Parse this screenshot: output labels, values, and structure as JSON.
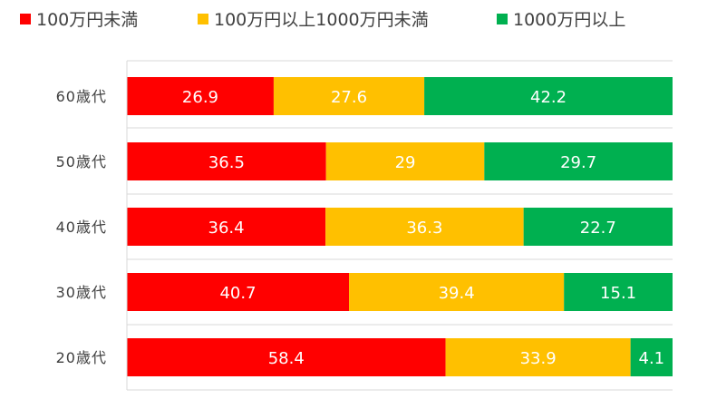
{
  "chart_data": {
    "type": "bar",
    "orientation": "horizontal",
    "stacked": true,
    "categories": [
      "60歳代",
      "50歳代",
      "40歳代",
      "30歳代",
      "20歳代"
    ],
    "series": [
      {
        "name": "100万円未満",
        "color": "#FF0000",
        "values": [
          26.9,
          36.5,
          36.4,
          40.7,
          58.4
        ]
      },
      {
        "name": "100万円以上1000万円未満",
        "color": "#FFC000",
        "values": [
          27.6,
          29,
          36.3,
          39.4,
          33.9
        ]
      },
      {
        "name": "1000万円以上",
        "color": "#00B050",
        "values": [
          42.2,
          29.7,
          22.7,
          15.1,
          4.1
        ]
      }
    ],
    "data_labels": [
      [
        "26.9",
        "36.5",
        "36.4",
        "40.7",
        "58.4"
      ],
      [
        "27.6",
        "29",
        "36.3",
        "39.4",
        "33.9"
      ],
      [
        "42.2",
        "29.7",
        "22.7",
        "15.1",
        "4.1"
      ]
    ],
    "xlim": [
      0,
      100
    ],
    "grid": "horizontal-separators",
    "legend_position": "top"
  }
}
